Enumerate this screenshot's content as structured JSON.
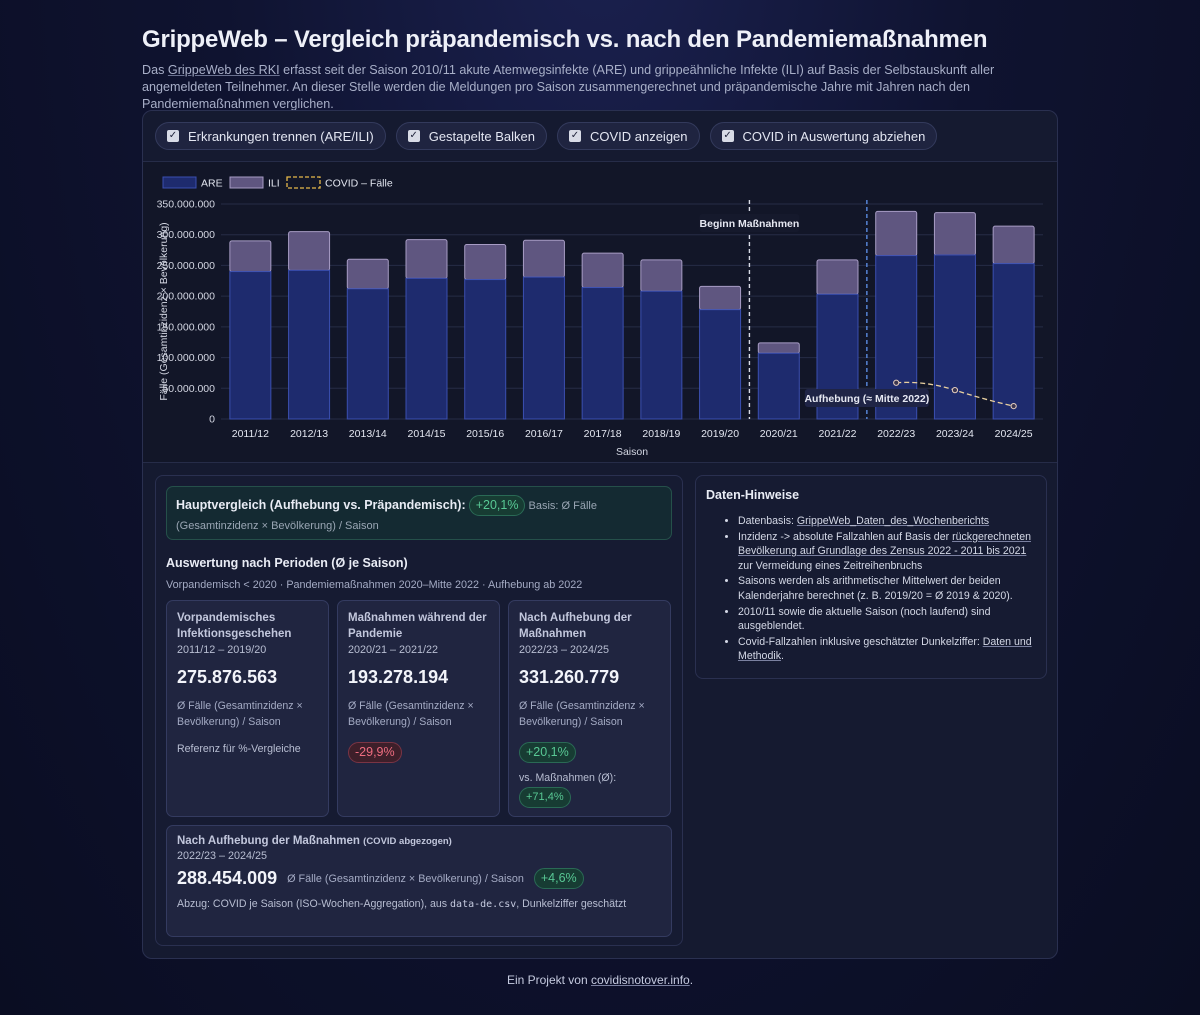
{
  "header": {
    "title": "GrippeWeb – Vergleich präpandemisch vs. nach den Pandemiemaßnahmen",
    "intro_before": "Das ",
    "intro_link": "GrippeWeb des RKI",
    "intro_after": " erfasst seit der Saison 2010/11 akute Atemwegsinfekte (ARE) und grippeähnliche Infekte (ILI) auf Basis der Selbstauskunft aller angemeldeten Teilnehmer. An dieser Stelle werden die Meldungen pro Saison zusammengerechnet und präpandemische Jahre mit Jahren nach den Pandemiemaßnahmen verglichen."
  },
  "toggles": [
    {
      "label": "Erkrankungen trennen (ARE/ILI)",
      "checked": true
    },
    {
      "label": "Gestapelte Balken",
      "checked": true
    },
    {
      "label": "COVID anzeigen",
      "checked": true
    },
    {
      "label": "COVID in Auswertung abziehen",
      "checked": true
    }
  ],
  "colors": {
    "are": "#1e2b6e",
    "are_border": "#3b4fb0",
    "ili": "#5f5680",
    "ili_border": "#a79cc4",
    "covid": "#e6b84a",
    "marker_start": "#d8dbe6",
    "marker_end": "#5a8ae0"
  },
  "chart_data": {
    "type": "bar",
    "stacked": true,
    "categories": [
      "2011/12",
      "2012/13",
      "2013/14",
      "2014/15",
      "2015/16",
      "2016/17",
      "2017/18",
      "2018/19",
      "2019/20",
      "2020/21",
      "2021/22",
      "2022/23",
      "2023/24",
      "2024/25"
    ],
    "series": [
      {
        "name": "ARE",
        "values": [
          240000000,
          242000000,
          212000000,
          229000000,
          227000000,
          231000000,
          214000000,
          208000000,
          178000000,
          107000000,
          203000000,
          266000000,
          267000000,
          253000000
        ]
      },
      {
        "name": "ILI",
        "values": [
          50000000,
          63000000,
          48000000,
          63000000,
          57000000,
          60000000,
          56000000,
          51000000,
          38000000,
          17000000,
          56000000,
          72000000,
          69000000,
          61000000
        ]
      }
    ],
    "covid": {
      "name": "COVID – Fälle",
      "categories": [
        "2022/23",
        "2023/24",
        "2024/25"
      ],
      "values": [
        59000000,
        47000000,
        21000000
      ]
    },
    "xlabel": "Saison",
    "ylabel": "Fälle (Gesamtinzidenz × Bevölkerung)",
    "ylim": [
      0,
      350000000
    ],
    "yticks": [
      0,
      50000000,
      100000000,
      150000000,
      200000000,
      250000000,
      300000000,
      350000000
    ],
    "ytick_labels": [
      "0",
      "50.000.000",
      "100.000.000",
      "150.000.000",
      "200.000.000",
      "250.000.000",
      "300.000.000",
      "350.000.000"
    ],
    "legend": [
      "ARE",
      "ILI",
      "COVID – Fälle"
    ],
    "legend_position": "top-left",
    "annotations": [
      {
        "label": "Beginn Maßnahmen",
        "between": [
          "2019/20",
          "2020/21"
        ]
      },
      {
        "label": "Aufhebung (≈ Mitte 2022)",
        "between": [
          "2021/22",
          "2022/23"
        ]
      }
    ]
  },
  "comparison": {
    "title": "Hauptvergleich (Aufhebung vs. Präpandemisch):",
    "value": "+20,1%",
    "basis": "Basis: Ø Fälle (Gesamtinzidenz × Bevölkerung) / Saison"
  },
  "periods": {
    "title": "Auswertung nach Perioden (Ø je Saison)",
    "subtitle": "Vorpandemisch < 2020 · Pandemiemaßnahmen 2020–Mitte 2022 · Aufhebung ab 2022",
    "cards": [
      {
        "title": "Vorpandemisches Infektionsgeschehen",
        "range": "2011/12 – 2019/20",
        "value": "275.876.563",
        "desc": "Ø Fälle (Gesamtinzidenz × Bevölkerung) / Saison",
        "extra": "Referenz für %-Vergleiche"
      },
      {
        "title": "Maßnahmen während der Pandemie",
        "range": "2020/21 – 2021/22",
        "value": "193.278.194",
        "desc": "Ø Fälle (Gesamtinzidenz × Bevölkerung) / Saison",
        "change": "-29,9%"
      },
      {
        "title": "Nach Aufhebung der Maßnahmen",
        "range": "2022/23 – 2024/25",
        "value": "331.260.779",
        "desc": "Ø Fälle (Gesamtinzidenz × Bevölkerung) / Saison",
        "change": "+20,1%",
        "vs_label": "vs. Maßnahmen (Ø):",
        "vs_change": "+71,4%"
      }
    ],
    "covid_card": {
      "title": "Nach Aufhebung der Maßnahmen",
      "title_small": "(COVID abgezogen)",
      "range": "2022/23 – 2024/25",
      "value": "288.454.009",
      "desc": "Ø Fälle (Gesamtinzidenz × Bevölkerung) / Saison",
      "change": "+4,6%",
      "note_before": "Abzug: COVID je Saison (ISO-Wochen-Aggregation), aus ",
      "note_code": "data-de.csv",
      "note_after": ", Dunkelziffer geschätzt"
    }
  },
  "notes": {
    "title": "Daten-Hinweise",
    "items": [
      {
        "before": "Datenbasis: ",
        "link": "GrippeWeb_Daten_des_Wochenberichts",
        "after": ""
      },
      {
        "before": "Inzidenz -> absolute Fallzahlen auf Basis der ",
        "link": "rückgerechneten Bevölkerung auf Grundlage des Zensus 2022 - 2011 bis 2021",
        "after": " zur Vermeidung eines Zeitreihenbruchs"
      },
      {
        "before": "Saisons werden als arithmetischer Mittelwert der beiden Kalenderjahre berechnet (z. B. 2019/20 = Ø 2019 & 2020).",
        "link": "",
        "after": ""
      },
      {
        "before": "2010/11 sowie die aktuelle Saison (noch laufend) sind ausgeblendet.",
        "link": "",
        "after": ""
      },
      {
        "before": "Covid-Fallzahlen inklusive geschätzter Dunkelziffer: ",
        "link": "Daten und Methodik",
        "after": "."
      }
    ]
  },
  "footer": {
    "before": "Ein Projekt von ",
    "link": "covidisnotover.info",
    "after": "."
  }
}
